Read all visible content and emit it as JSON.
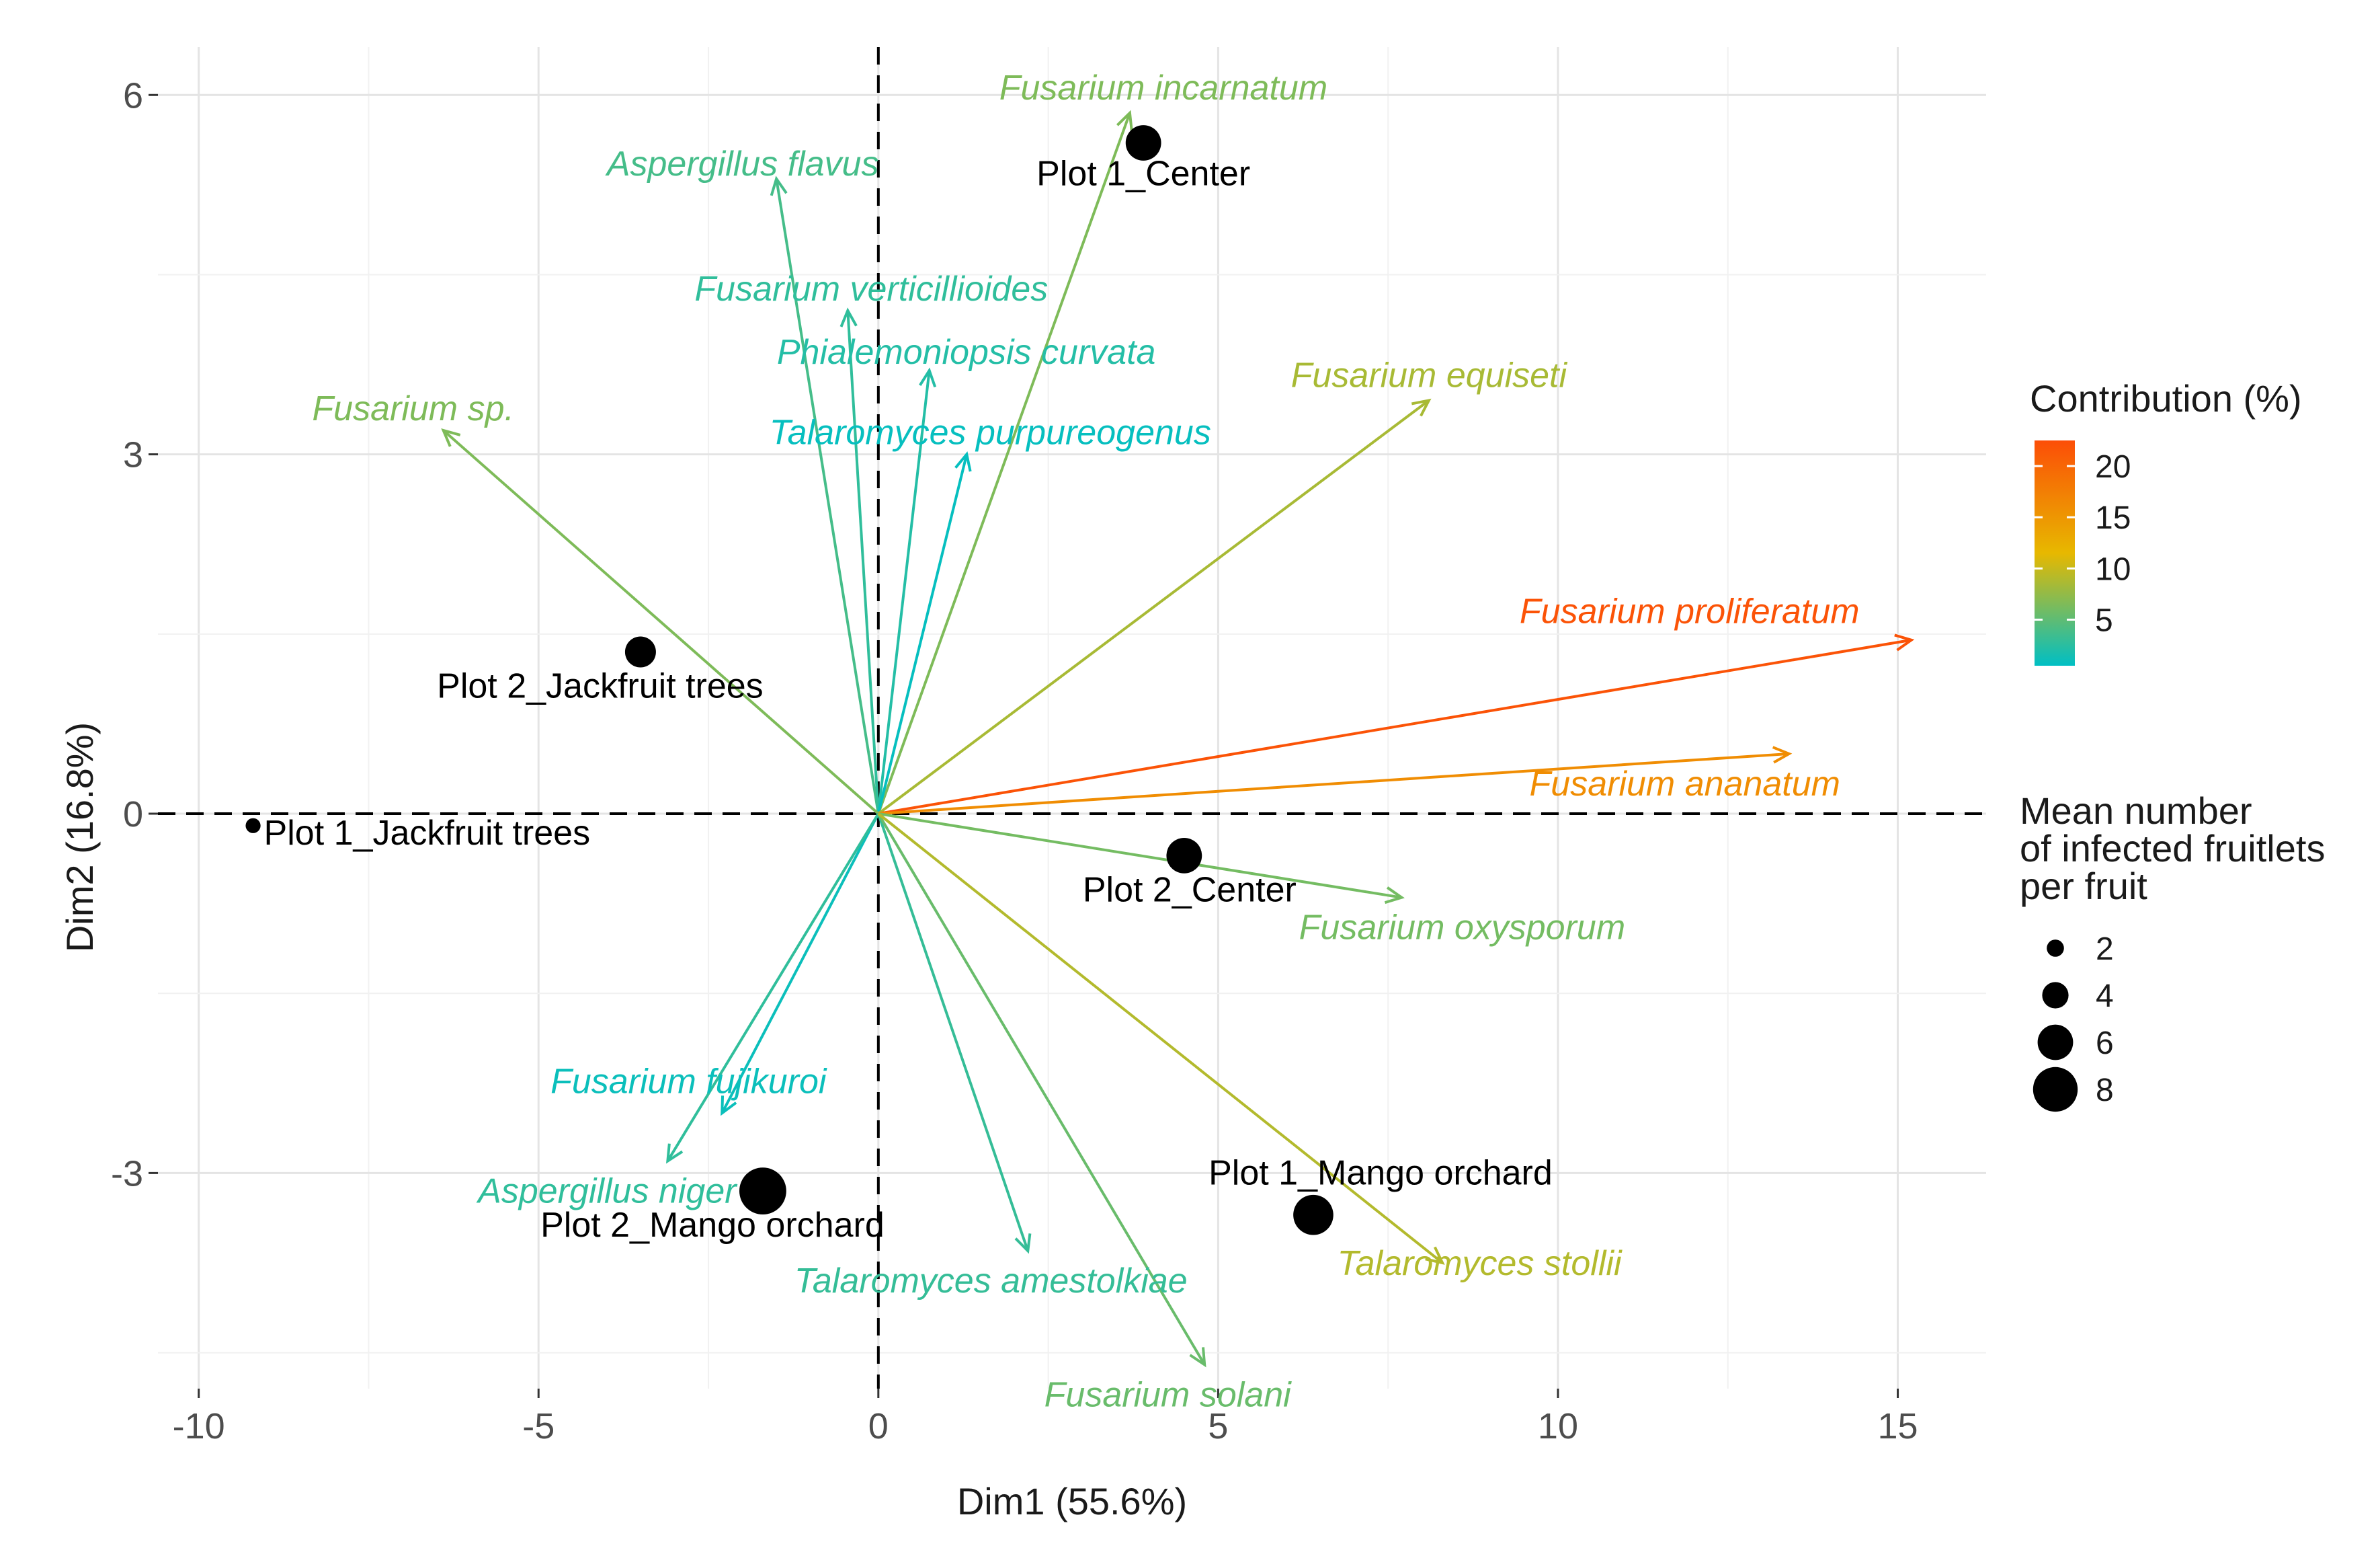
{
  "chart_data": {
    "type": "scatter",
    "subtype": "pca_biplot",
    "title": "",
    "xlabel": "Dim1 (55.6%)",
    "ylabel": "Dim2 (16.8%)",
    "xlim": [
      -10.6,
      16.3
    ],
    "ylim": [
      -4.8,
      6.4
    ],
    "x_ticks": [
      -10,
      -5,
      0,
      5,
      10,
      15
    ],
    "x_tick_labels": [
      "-10",
      "-5",
      "0",
      "5",
      "10",
      "15"
    ],
    "y_ticks": [
      -3,
      0,
      3,
      6
    ],
    "y_tick_labels": [
      "-3",
      "0",
      "3",
      "6"
    ],
    "grid": true,
    "variables": [
      {
        "name": "Fusarium incarnatum",
        "x": 3.7,
        "y": 5.85,
        "contribution": 6.5
      },
      {
        "name": "Aspergillus flavus",
        "x": -1.5,
        "y": 5.3,
        "contribution": 3.8
      },
      {
        "name": "Fusarium verticillioides",
        "x": -0.45,
        "y": 4.2,
        "contribution": 2.8
      },
      {
        "name": "Phialemoniopsis curvata",
        "x": 0.75,
        "y": 3.7,
        "contribution": 2.2
      },
      {
        "name": "Talaromyces purpureogenus",
        "x": 1.3,
        "y": 3.0,
        "contribution": 0.8
      },
      {
        "name": "Fusarium sp.",
        "x": -6.4,
        "y": 3.2,
        "contribution": 6.5
      },
      {
        "name": "Fusarium equiseti",
        "x": 8.1,
        "y": 3.45,
        "contribution": 8.5
      },
      {
        "name": "Fusarium proliferatum",
        "x": 15.2,
        "y": 1.45,
        "contribution": 22.0
      },
      {
        "name": "Fusarium ananatum",
        "x": 13.4,
        "y": 0.5,
        "contribution": 16.0
      },
      {
        "name": "Fusarium oxysporum",
        "x": 7.7,
        "y": -0.7,
        "contribution": 6.0
      },
      {
        "name": "Fusarium fujikuroi",
        "x": -2.3,
        "y": -2.5,
        "contribution": 1.0
      },
      {
        "name": "Aspergillus niger",
        "x": -3.1,
        "y": -2.9,
        "contribution": 2.8
      },
      {
        "name": "Talaromyces amestolkiae",
        "x": 2.2,
        "y": -3.65,
        "contribution": 3.0
      },
      {
        "name": "Fusarium solani",
        "x": 4.8,
        "y": -4.6,
        "contribution": 5.5
      },
      {
        "name": "Talaromyces stollii",
        "x": 8.3,
        "y": -3.75,
        "contribution": 9.0
      }
    ],
    "individuals": [
      {
        "name": "Plot 1_Center",
        "x": 3.9,
        "y": 5.6,
        "mean_infected": 6
      },
      {
        "name": "Plot 2_Jackfruit trees",
        "x": -3.5,
        "y": 1.35,
        "mean_infected": 5
      },
      {
        "name": "Plot 1_Jackfruit trees",
        "x": -9.2,
        "y": -0.1,
        "mean_infected": 1.5
      },
      {
        "name": "Plot 2_Center",
        "x": 4.5,
        "y": -0.35,
        "mean_infected": 6
      },
      {
        "name": "Plot 1_Mango orchard",
        "x": 6.4,
        "y": -3.35,
        "mean_infected": 7
      },
      {
        "name": "Plot 2_Mango orchard",
        "x": -1.7,
        "y": -3.15,
        "mean_infected": 8.5
      }
    ],
    "color_legend": {
      "title": "Contribution (%)",
      "ticks": [
        5,
        10,
        15,
        20
      ],
      "tick_labels": [
        "5",
        "10",
        "15",
        "20"
      ],
      "range": [
        0.5,
        22.5
      ],
      "colors": [
        "#00BFC4",
        "#E7B800",
        "#FC4E07"
      ]
    },
    "size_legend": {
      "title_lines": [
        "Mean number",
        "of infected fruitlets",
        "per fruit"
      ],
      "values": [
        2,
        4,
        6,
        8
      ],
      "labels": [
        "2",
        "4",
        "6",
        "8"
      ]
    }
  }
}
